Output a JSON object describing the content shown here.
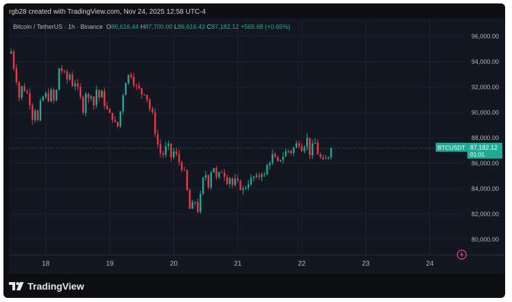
{
  "attribution": "rgb28 created with TradingView.com, Nov 24, 2025 12:58 UTC-4",
  "legend": {
    "symbol": "Bitcoin / TetherUS · 1h · Binance",
    "o_label": "O",
    "o_value": "86,616.44",
    "h_label": "H",
    "h_value": "87,700.00",
    "l_label": "L",
    "l_value": "86,616.43",
    "c_label": "C",
    "c_value": "87,182.12",
    "change": "+565.68 (+0.65%)"
  },
  "price_tag": {
    "symbol": "BTCUSDT",
    "price": "87,182.12",
    "countdown": "01:01"
  },
  "branding": "TradingView",
  "colors": {
    "up": "#22ab94",
    "down": "#f23645",
    "background": "#131722",
    "axis_text": "#b2b5be"
  },
  "chart_data": {
    "type": "candlestick",
    "ylim": [
      78800,
      97400
    ],
    "yticks": [
      "96,000.00",
      "94,000.00",
      "92,000.00",
      "90,000.00",
      "88,000.00",
      "86,000.00",
      "84,000.00",
      "82,000.00",
      "80,000.00"
    ],
    "ytick_values": [
      96000,
      94000,
      92000,
      90000,
      88000,
      86000,
      84000,
      82000,
      80000
    ],
    "xticks": [
      "18",
      "19",
      "20",
      "21",
      "22",
      "23",
      "24"
    ],
    "xtick_hours": [
      0,
      24,
      48,
      72,
      96,
      120,
      144
    ],
    "current_price": 87182.12,
    "close_path": [
      [
        -13,
        94800
      ],
      [
        -12,
        93600
      ],
      [
        -11,
        92600
      ],
      [
        -10,
        91200
      ],
      [
        -9,
        92000
      ],
      [
        -8,
        91800
      ],
      [
        -7,
        91500
      ],
      [
        -6,
        90800
      ],
      [
        -5,
        89600
      ],
      [
        -4,
        90300
      ],
      [
        -3,
        89300
      ],
      [
        -2,
        90700
      ],
      [
        -1,
        91200
      ],
      [
        0,
        91400
      ],
      [
        1,
        91100
      ],
      [
        2,
        91600
      ],
      [
        3,
        90900
      ],
      [
        4,
        91700
      ],
      [
        5,
        93500
      ],
      [
        6,
        93300
      ],
      [
        7,
        93000
      ],
      [
        8,
        92600
      ],
      [
        9,
        93000
      ],
      [
        10,
        92200
      ],
      [
        11,
        92400
      ],
      [
        12,
        91800
      ],
      [
        13,
        91100
      ],
      [
        14,
        90200
      ],
      [
        15,
        91600
      ],
      [
        16,
        91000
      ],
      [
        17,
        91500
      ],
      [
        18,
        90600
      ],
      [
        19,
        91800
      ],
      [
        20,
        91200
      ],
      [
        21,
        91500
      ],
      [
        22,
        90700
      ],
      [
        23,
        90200
      ],
      [
        24,
        89800
      ],
      [
        25,
        89600
      ],
      [
        26,
        89100
      ],
      [
        27,
        88900
      ],
      [
        28,
        90100
      ],
      [
        29,
        91500
      ],
      [
        30,
        92500
      ],
      [
        31,
        92900
      ],
      [
        32,
        93000
      ],
      [
        33,
        92400
      ],
      [
        34,
        92000
      ],
      [
        35,
        91800
      ],
      [
        36,
        91500
      ],
      [
        37,
        91600
      ],
      [
        38,
        91100
      ],
      [
        39,
        90300
      ],
      [
        40,
        89800
      ],
      [
        41,
        88500
      ],
      [
        42,
        87500
      ],
      [
        43,
        86800
      ],
      [
        44,
        86700
      ],
      [
        45,
        87200
      ],
      [
        46,
        87300
      ],
      [
        47,
        86500
      ],
      [
        48,
        86900
      ],
      [
        49,
        86600
      ],
      [
        50,
        86100
      ],
      [
        51,
        85700
      ],
      [
        52,
        85200
      ],
      [
        53,
        83800
      ],
      [
        54,
        82400
      ],
      [
        55,
        82700
      ],
      [
        56,
        83000
      ],
      [
        57,
        82300
      ],
      [
        58,
        83400
      ],
      [
        59,
        84700
      ],
      [
        60,
        85100
      ],
      [
        61,
        84300
      ],
      [
        62,
        85400
      ],
      [
        63,
        85700
      ],
      [
        64,
        84800
      ],
      [
        65,
        85100
      ],
      [
        66,
        85400
      ],
      [
        67,
        85100
      ],
      [
        68,
        84600
      ],
      [
        69,
        84900
      ],
      [
        70,
        84300
      ],
      [
        71,
        84600
      ],
      [
        72,
        84400
      ],
      [
        73,
        84100
      ],
      [
        74,
        83900
      ],
      [
        75,
        84200
      ],
      [
        76,
        84500
      ],
      [
        77,
        84700
      ],
      [
        78,
        84900
      ],
      [
        79,
        84800
      ],
      [
        80,
        85000
      ],
      [
        81,
        85300
      ],
      [
        82,
        85000
      ],
      [
        83,
        85800
      ],
      [
        84,
        86200
      ],
      [
        85,
        86600
      ],
      [
        86,
        86300
      ],
      [
        87,
        86000
      ],
      [
        88,
        86400
      ],
      [
        89,
        86600
      ],
      [
        90,
        86900
      ],
      [
        91,
        87000
      ],
      [
        92,
        86900
      ],
      [
        93,
        87200
      ],
      [
        94,
        87500
      ],
      [
        95,
        87600
      ],
      [
        96,
        87200
      ],
      [
        97,
        87500
      ],
      [
        98,
        87900
      ],
      [
        99,
        86800
      ],
      [
        100,
        87300
      ],
      [
        101,
        87600
      ],
      [
        102,
        86800
      ],
      [
        103,
        86400
      ],
      [
        104,
        86100
      ],
      [
        105,
        86300
      ],
      [
        106,
        86600
      ],
      [
        107,
        87182
      ]
    ]
  }
}
